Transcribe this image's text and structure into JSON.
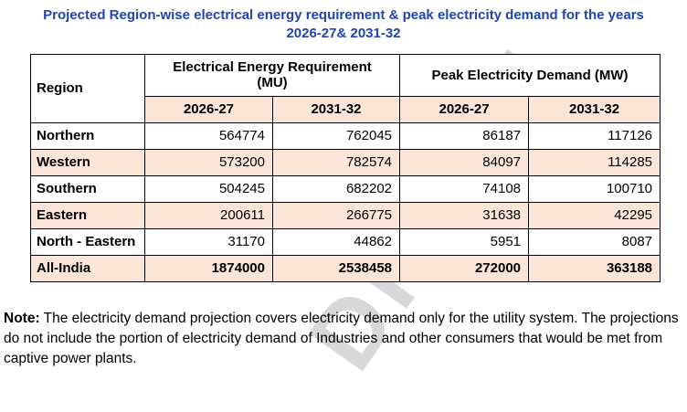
{
  "title": {
    "line1": "Projected Region-wise electrical energy requirement & peak electricity demand for the years",
    "line2": "2026-27& 2031-32"
  },
  "table": {
    "region_header": "Region",
    "group_headers": [
      "Electrical Energy Requirement (MU)",
      "Peak Electricity Demand (MW)"
    ],
    "year_headers": [
      "2026-27",
      "2031-32",
      "2026-27",
      "2031-32"
    ],
    "rows": [
      {
        "region": "Northern",
        "values": [
          "564774",
          "762045",
          "86187",
          "117126"
        ],
        "shaded": false,
        "bold": false
      },
      {
        "region": "Western",
        "values": [
          "573200",
          "782574",
          "84097",
          "114285"
        ],
        "shaded": true,
        "bold": false
      },
      {
        "region": "Southern",
        "values": [
          "504245",
          "682202",
          "74108",
          "100710"
        ],
        "shaded": false,
        "bold": false
      },
      {
        "region": "Eastern",
        "values": [
          "200611",
          "266775",
          "31638",
          "42295"
        ],
        "shaded": true,
        "bold": false
      },
      {
        "region": "North - Eastern",
        "values": [
          "31170",
          "44862",
          "5951",
          "8087"
        ],
        "shaded": false,
        "bold": false
      },
      {
        "region": "All-India",
        "values": [
          "1874000",
          "2538458",
          "272000",
          "363188"
        ],
        "shaded": true,
        "bold": true
      }
    ]
  },
  "note": {
    "label": "Note:",
    "text": " The electricity demand projection covers electricity demand only for the utility system. The projections do not include the portion of electricity demand of Industries and other consumers that would be met from captive power plants."
  },
  "watermark": "DRAFT",
  "colors": {
    "title_text": "#2144B0",
    "header_fill": "#FBE5D6",
    "border": "#000000",
    "watermark_text": "#9a9a9a"
  }
}
